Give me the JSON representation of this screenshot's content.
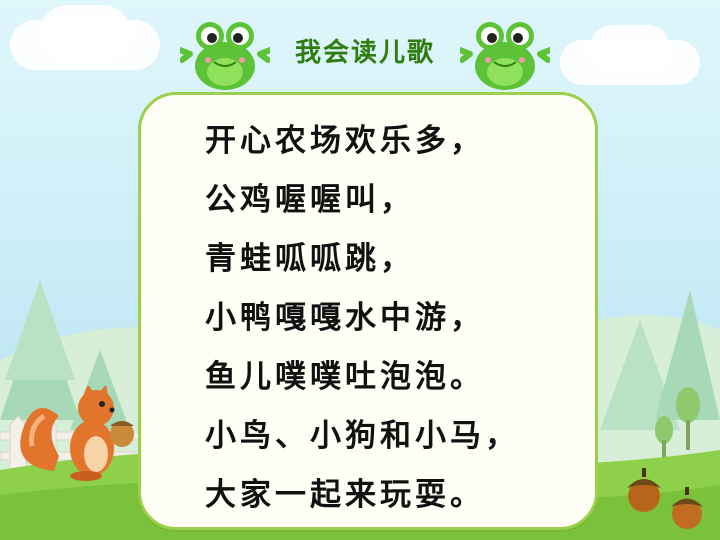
{
  "header": {
    "title": "我会读儿歌"
  },
  "poem": {
    "lines": [
      "开心农场欢乐多，",
      "公鸡喔喔叫，",
      "青蛙呱呱跳，",
      "小鸭嘎嘎水中游，",
      "鱼儿噗噗吐泡泡。",
      "小鸟、小狗和小马，",
      "大家一起来玩耍。"
    ]
  },
  "colors": {
    "card_border": "#9ccf4a",
    "title": "#2f7d10",
    "grass": "#8fd04a"
  },
  "decorations": {
    "left_frog": "frog-icon",
    "right_frog": "frog-icon",
    "animal": "squirrel-icon",
    "nuts": "acorn-icon"
  }
}
